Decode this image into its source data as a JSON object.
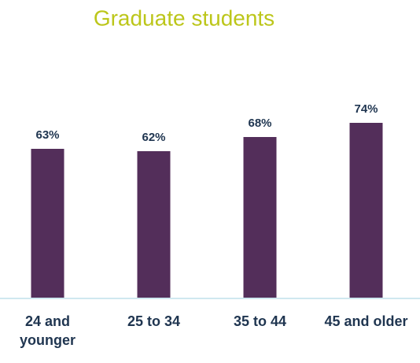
{
  "chart_data": {
    "type": "bar",
    "title": "Graduate students",
    "categories": [
      "24 and younger",
      "25 to 34",
      "35 to 44",
      "45 and older"
    ],
    "values": [
      63,
      62,
      68,
      74
    ],
    "value_labels": [
      "63%",
      "62%",
      "68%",
      "74%"
    ],
    "color": "#532e5a"
  }
}
